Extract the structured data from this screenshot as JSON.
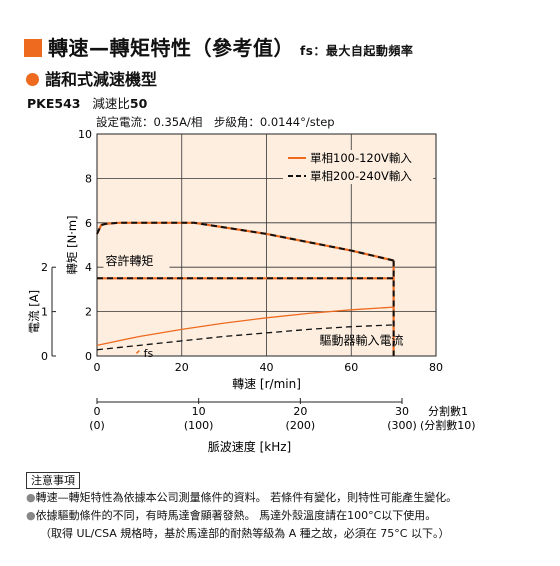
{
  "header": {
    "title": "轉速—轉矩特性（參考值）",
    "title_note": "fs：最大自起動頻率",
    "subtitle": "諧和式減速機型",
    "model_label": "PKE543",
    "model_ratio": "減速比",
    "model_ratio_value": "50",
    "settings": "設定電流：0.35A/相　步級角：0.0144°/step",
    "accent_color": "#ee6a1f"
  },
  "chart_data": {
    "type": "line",
    "xlabel": "轉速 [r/min]",
    "ylabel": "轉矩 [N·m]",
    "y2label": "電流 [A]",
    "xlim": [
      0,
      80
    ],
    "ylim": [
      0,
      10
    ],
    "y2lim": [
      0,
      2
    ],
    "x_ticks": [
      "0",
      "20",
      "40",
      "60",
      "80"
    ],
    "y_ticks": [
      "0",
      "2",
      "4",
      "6",
      "8",
      "10"
    ],
    "y2_ticks": [
      "0",
      "1",
      "2"
    ],
    "grid": true,
    "background_color": "#fdeee0",
    "legend_position": "top-right",
    "series": [
      {
        "name": "單相100-120V輸入",
        "style": "solid",
        "color": "#ee6a1f",
        "x": [
          0,
          1,
          2,
          5,
          10,
          20,
          23,
          40,
          60,
          70
        ],
        "y": [
          5.5,
          5.9,
          5.95,
          6.0,
          6.0,
          6.0,
          6.0,
          5.5,
          4.75,
          4.3
        ]
      },
      {
        "name": "單相200-240V輸入",
        "style": "dashed",
        "color": "#111111",
        "x": [
          0,
          1,
          2,
          5,
          10,
          20,
          23,
          40,
          60,
          70
        ],
        "y": [
          5.5,
          5.9,
          5.95,
          6.0,
          6.0,
          6.0,
          6.0,
          5.5,
          4.75,
          4.3
        ]
      }
    ],
    "current_series": [
      {
        "name": "單相100-120V輸入",
        "style": "solid",
        "color": "#ee6a1f",
        "x": [
          0,
          10,
          20,
          30,
          40,
          50,
          60,
          70
        ],
        "y": [
          0.24,
          0.44,
          0.6,
          0.74,
          0.86,
          0.96,
          1.04,
          1.1
        ]
      },
      {
        "name": "單相200-240V輸入",
        "style": "dashed",
        "color": "#111111",
        "x": [
          0,
          10,
          20,
          30,
          40,
          50,
          60,
          70
        ],
        "y": [
          0.14,
          0.24,
          0.34,
          0.44,
          0.52,
          0.6,
          0.66,
          0.7
        ]
      }
    ],
    "allowable_torque": 3.5,
    "max_speed": 70,
    "annotations": {
      "allowable": "容許轉矩",
      "driver_current": "驅動器輸入電流",
      "fs": "fs"
    },
    "secondary_axis": {
      "label": "脈波速度 [kHz]",
      "ticks": [
        "0",
        "10",
        "20",
        "30"
      ],
      "ticks_sub": [
        "(0)",
        "(100)",
        "(200)",
        "(300)"
      ],
      "label_div1": "分割數1",
      "label_div10": "(分割數10)"
    }
  },
  "notes": {
    "heading": "注意事項",
    "items": [
      "轉速—轉矩特性為依據本公司測量條件的資料。 若條件有變化，則特性可能產生變化。",
      "依據驅動條件的不同，有時馬達會顯著發熱。 馬達外殼溫度請在100°C以下使用。"
    ],
    "sub_item": "（取得 UL/CSA 規格時，基於馬達部的耐熱等級為 A 種之故，必須在 75°C 以下。）"
  }
}
